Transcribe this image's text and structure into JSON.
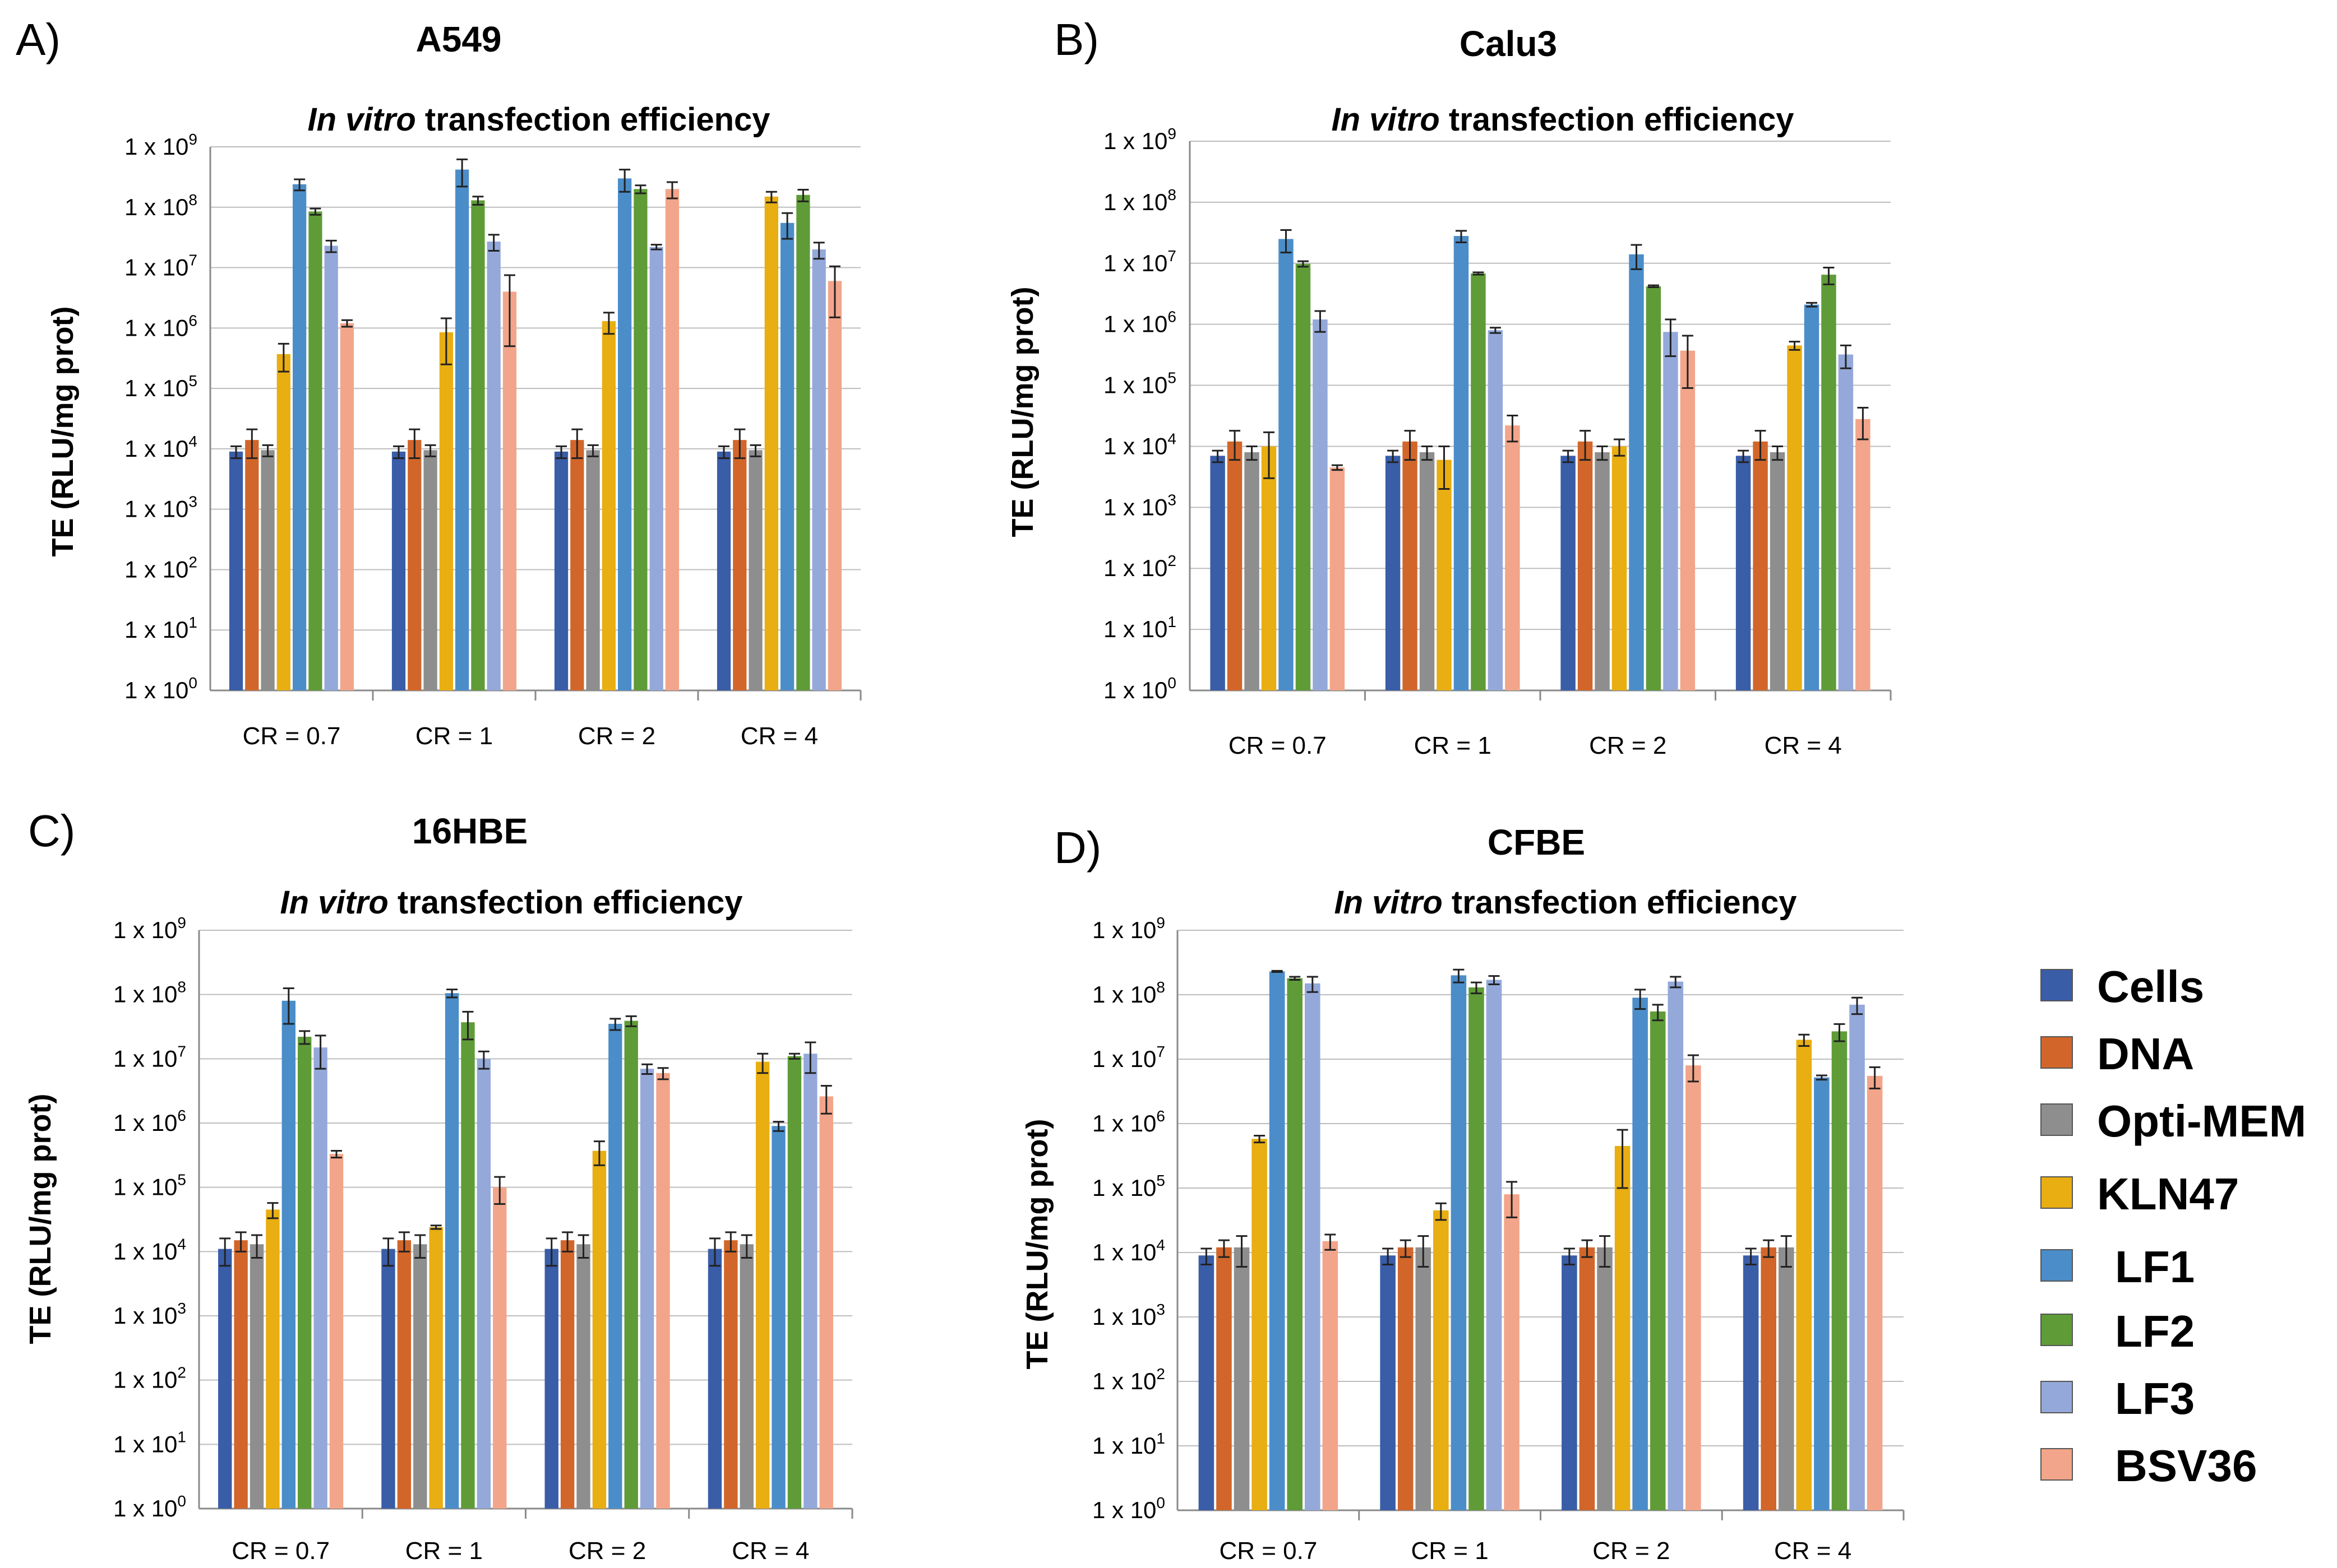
{
  "chart_data": [
    {
      "type": "bar",
      "panel_label": "A)",
      "cell_line": "A549",
      "title": {
        "italic": "In vitro",
        "rest": " transfection efficiency"
      },
      "ylabel": "TE (RLU/mg prot)",
      "xlabel": "",
      "yscale": "log",
      "ylim": [
        1,
        1000000000
      ],
      "yticks": [
        {
          "base": "1 x 10",
          "exp": "0"
        },
        {
          "base": "1 x 10",
          "exp": "1"
        },
        {
          "base": "1 x 10",
          "exp": "2"
        },
        {
          "base": "1 x 10",
          "exp": "3"
        },
        {
          "base": "1 x 10",
          "exp": "4"
        },
        {
          "base": "1 x 10",
          "exp": "5"
        },
        {
          "base": "1 x 10",
          "exp": "6"
        },
        {
          "base": "1 x 10",
          "exp": "7"
        },
        {
          "base": "1 x 10",
          "exp": "8"
        },
        {
          "base": "1 x 10",
          "exp": "9"
        }
      ],
      "grid": true,
      "categories": [
        "CR = 0.7",
        "CR = 1",
        "CR = 2",
        "CR = 4"
      ],
      "series": [
        {
          "name": "Cells",
          "values": [
            9000,
            9000,
            9000,
            9000
          ],
          "errors": [
            2000,
            2000,
            2000,
            2000
          ]
        },
        {
          "name": "DNA",
          "values": [
            14000,
            14000,
            14000,
            14000
          ],
          "errors": [
            7000,
            7000,
            7000,
            7000
          ]
        },
        {
          "name": "Opti-MEM",
          "values": [
            9500,
            9500,
            9500,
            9500
          ],
          "errors": [
            2000,
            2000,
            2000,
            2000
          ]
        },
        {
          "name": "KLN47",
          "values": [
            370000,
            850000,
            1300000,
            150000000
          ],
          "errors": [
            180000,
            600000,
            500000,
            30000000
          ]
        },
        {
          "name": "LF1",
          "values": [
            240000000,
            420000000,
            300000000,
            55000000
          ],
          "errors": [
            50000000,
            200000000,
            120000000,
            25000000
          ]
        },
        {
          "name": "LF2",
          "values": [
            85000000,
            130000000,
            200000000,
            160000000
          ],
          "errors": [
            10000000,
            20000000,
            30000000,
            35000000
          ]
        },
        {
          "name": "LF3",
          "values": [
            23000000,
            27000000,
            22000000,
            20000000
          ],
          "errors": [
            5000000,
            8000000,
            2000000,
            6000000
          ]
        },
        {
          "name": "BSV36",
          "values": [
            1200000,
            4000000,
            200000000,
            6000000
          ],
          "errors": [
            150000,
            3500000,
            60000000,
            4500000
          ]
        }
      ]
    },
    {
      "type": "bar",
      "panel_label": "B)",
      "cell_line": "Calu3",
      "title": {
        "italic": "In vitro",
        "rest": " transfection efficiency"
      },
      "ylabel": "TE (RLU/mg prot)",
      "xlabel": "",
      "yscale": "log",
      "ylim": [
        1,
        1000000000
      ],
      "yticks": [
        {
          "base": "1 x 10",
          "exp": "0"
        },
        {
          "base": "1 x 10",
          "exp": "1"
        },
        {
          "base": "1 x 10",
          "exp": "2"
        },
        {
          "base": "1 x 10",
          "exp": "3"
        },
        {
          "base": "1 x 10",
          "exp": "4"
        },
        {
          "base": "1 x 10",
          "exp": "5"
        },
        {
          "base": "1 x 10",
          "exp": "6"
        },
        {
          "base": "1 x 10",
          "exp": "7"
        },
        {
          "base": "1 x 10",
          "exp": "8"
        },
        {
          "base": "1 x 10",
          "exp": "9"
        }
      ],
      "grid": true,
      "categories": [
        "CR = 0.7",
        "CR = 1",
        "CR = 2",
        "CR = 4"
      ],
      "series": [
        {
          "name": "Cells",
          "values": [
            7000,
            7000,
            7000,
            7000
          ],
          "errors": [
            1500,
            1500,
            1500,
            1500
          ]
        },
        {
          "name": "DNA",
          "values": [
            12000,
            12000,
            12000,
            12000
          ],
          "errors": [
            6000,
            6000,
            6000,
            6000
          ]
        },
        {
          "name": "Opti-MEM",
          "values": [
            8000,
            8000,
            8000,
            8000
          ],
          "errors": [
            2000,
            2000,
            2000,
            2000
          ]
        },
        {
          "name": "KLN47",
          "values": [
            10000,
            6000,
            10000,
            450000
          ],
          "errors": [
            7000,
            4000,
            3000,
            70000
          ]
        },
        {
          "name": "LF1",
          "values": [
            25000000,
            28000000,
            14000000,
            2100000
          ],
          "errors": [
            10000000,
            6000000,
            6000000,
            150000
          ]
        },
        {
          "name": "LF2",
          "values": [
            9800000,
            6800000,
            4200000,
            6500000
          ],
          "errors": [
            1000000,
            300000,
            150000,
            2000000
          ]
        },
        {
          "name": "LF3",
          "values": [
            1200000,
            800000,
            750000,
            320000
          ],
          "errors": [
            450000,
            80000,
            450000,
            130000
          ]
        },
        {
          "name": "BSV36",
          "values": [
            4500,
            22000,
            370000,
            28000
          ],
          "errors": [
            400,
            10000,
            280000,
            15000
          ]
        }
      ]
    },
    {
      "type": "bar",
      "panel_label": "C)",
      "cell_line": "16HBE",
      "title": {
        "italic": "In vitro",
        "rest": " transfection efficiency"
      },
      "ylabel": "TE (RLU/mg prot)",
      "xlabel": "",
      "yscale": "log",
      "ylim": [
        1,
        1000000000
      ],
      "yticks": [
        {
          "base": "1 x 10",
          "exp": "0"
        },
        {
          "base": "1 x 10",
          "exp": "1"
        },
        {
          "base": "1 x 10",
          "exp": "2"
        },
        {
          "base": "1 x 10",
          "exp": "3"
        },
        {
          "base": "1 x 10",
          "exp": "4"
        },
        {
          "base": "1 x 10",
          "exp": "5"
        },
        {
          "base": "1 x 10",
          "exp": "6"
        },
        {
          "base": "1 x 10",
          "exp": "7"
        },
        {
          "base": "1 x 10",
          "exp": "8"
        },
        {
          "base": "1 x 10",
          "exp": "9"
        }
      ],
      "grid": true,
      "categories": [
        "CR = 0.7",
        "CR = 1",
        "CR = 2",
        "CR = 4"
      ],
      "series": [
        {
          "name": "Cells",
          "values": [
            11000,
            11000,
            11000,
            11000
          ],
          "errors": [
            5000,
            5000,
            5000,
            5000
          ]
        },
        {
          "name": "DNA",
          "values": [
            15000,
            15000,
            15000,
            15000
          ],
          "errors": [
            5000,
            5000,
            5000,
            5000
          ]
        },
        {
          "name": "Opti-MEM",
          "values": [
            13000,
            13000,
            13000,
            13000
          ],
          "errors": [
            5000,
            5000,
            5000,
            5000
          ]
        },
        {
          "name": "KLN47",
          "values": [
            45000,
            24000,
            370000,
            9000000
          ],
          "errors": [
            12000,
            1500,
            150000,
            3000000
          ]
        },
        {
          "name": "LF1",
          "values": [
            80000000,
            105000000,
            35000000,
            900000
          ],
          "errors": [
            45000000,
            15000000,
            7000000,
            150000
          ]
        },
        {
          "name": "LF2",
          "values": [
            22000000,
            37000000,
            39000000,
            11000000
          ],
          "errors": [
            5000000,
            17000000,
            7000000,
            1000000
          ]
        },
        {
          "name": "LF3",
          "values": [
            15000000,
            10000000,
            7000000,
            12000000
          ],
          "errors": [
            8000000,
            3000000,
            1200000,
            6000000
          ]
        },
        {
          "name": "BSV36",
          "values": [
            330000,
            100000,
            6000000,
            2600000
          ],
          "errors": [
            40000,
            45000,
            1200000,
            1200000
          ]
        }
      ]
    },
    {
      "type": "bar",
      "panel_label": "D)",
      "cell_line": "CFBE",
      "title": {
        "italic": "In vitro",
        "rest": " transfection efficiency"
      },
      "ylabel": "TE (RLU/mg prot)",
      "xlabel": "",
      "yscale": "log",
      "ylim": [
        1,
        1000000000
      ],
      "yticks": [
        {
          "base": "1 x 10",
          "exp": "0"
        },
        {
          "base": "1 x 10",
          "exp": "1"
        },
        {
          "base": "1 x 10",
          "exp": "2"
        },
        {
          "base": "1 x 10",
          "exp": "3"
        },
        {
          "base": "1 x 10",
          "exp": "4"
        },
        {
          "base": "1 x 10",
          "exp": "5"
        },
        {
          "base": "1 x 10",
          "exp": "6"
        },
        {
          "base": "1 x 10",
          "exp": "7"
        },
        {
          "base": "1 x 10",
          "exp": "8"
        },
        {
          "base": "1 x 10",
          "exp": "9"
        }
      ],
      "grid": true,
      "categories": [
        "CR = 0.7",
        "CR = 1",
        "CR = 2",
        "CR = 4"
      ],
      "series": [
        {
          "name": "Cells",
          "values": [
            9000,
            9000,
            9000,
            9000
          ],
          "errors": [
            2500,
            2500,
            2500,
            2500
          ]
        },
        {
          "name": "DNA",
          "values": [
            12000,
            12000,
            12000,
            12000
          ],
          "errors": [
            3500,
            3500,
            3500,
            3500
          ]
        },
        {
          "name": "Opti-MEM",
          "values": [
            12000,
            12000,
            12000,
            12000
          ],
          "errors": [
            6000,
            6000,
            6000,
            6000
          ]
        },
        {
          "name": "KLN47",
          "values": [
            580000,
            45000,
            450000,
            20000000
          ],
          "errors": [
            70000,
            13000,
            350000,
            4000000
          ]
        },
        {
          "name": "LF1",
          "values": [
            230000000,
            200000000,
            90000000,
            5200000
          ],
          "errors": [
            5000000,
            45000000,
            30000000,
            400000
          ]
        },
        {
          "name": "LF2",
          "values": [
            180000000,
            130000000,
            55000000,
            27000000
          ],
          "errors": [
            10000000,
            25000000,
            15000000,
            8000000
          ]
        },
        {
          "name": "LF3",
          "values": [
            150000000,
            170000000,
            160000000,
            70000000
          ],
          "errors": [
            40000000,
            25000000,
            30000000,
            20000000
          ]
        },
        {
          "name": "BSV36",
          "values": [
            15000,
            80000,
            8000000,
            5500000
          ],
          "errors": [
            4000,
            45000,
            3500000,
            2000000
          ]
        }
      ]
    }
  ],
  "legend": {
    "items": [
      {
        "name": "Cells",
        "color": "#3A5DA8"
      },
      {
        "name": "DNA",
        "color": "#D2662A"
      },
      {
        "name": "Opti-MEM",
        "color": "#8E8E8E"
      },
      {
        "name": "KLN47",
        "color": "#E8AE12"
      },
      {
        "name": "LF1",
        "color": "#4B8DC9"
      },
      {
        "name": "LF2",
        "color": "#5F9C38"
      },
      {
        "name": "LF3",
        "color": "#94A9DA"
      },
      {
        "name": "BSV36",
        "color": "#F2A58A"
      }
    ]
  }
}
